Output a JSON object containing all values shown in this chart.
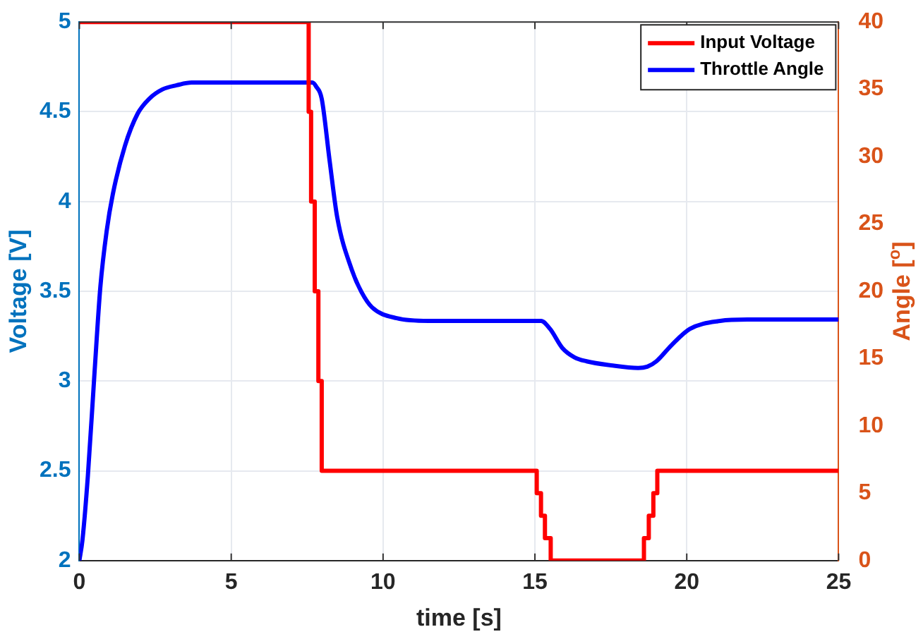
{
  "chart_data": {
    "type": "line",
    "xlabel": "time [s]",
    "ylabel": "Voltage [V]",
    "y2label": "Angle [$^{o}$]",
    "xlim": [
      0,
      25
    ],
    "xticks": [
      0,
      5,
      10,
      15,
      20,
      25
    ],
    "ylim": [
      2,
      5
    ],
    "yticks": [
      2,
      2.5,
      3,
      3.5,
      4,
      4.5,
      5
    ],
    "y2lim": [
      0,
      40
    ],
    "y2ticks": [
      0,
      5,
      10,
      15,
      20,
      25,
      30,
      35,
      40
    ],
    "grid": true,
    "legend": "top right",
    "series": [
      {
        "name": "Input Voltage",
        "type": "step",
        "color": "#ff0000",
        "x": [
          0,
          7.55,
          7.63,
          7.75,
          7.87,
          7.98,
          15.06,
          15.2,
          15.33,
          15.52,
          18.59,
          18.75,
          18.9,
          19.03,
          25
        ],
        "values": [
          5,
          4.5,
          4.0,
          3.5,
          3.0,
          2.5,
          2.375,
          2.25,
          2.125,
          2.0,
          2.125,
          2.25,
          2.375,
          2.5,
          2.5
        ]
      },
      {
        "name": "Throttle Angle",
        "type": "line",
        "axis": "y2",
        "color": "#0000ff",
        "x": [
          0,
          0.1,
          0.28,
          0.5,
          0.69,
          0.9,
          1.1,
          1.5,
          1.92,
          2.3,
          2.74,
          3.2,
          3.7,
          5,
          7.67,
          7.8,
          7.98,
          8.24,
          8.49,
          8.97,
          9.3,
          9.64,
          10.45,
          11.5,
          15.2,
          15.5,
          15.9,
          16.3,
          16.7,
          17.5,
          18.4,
          18.7,
          19.0,
          19.5,
          20.1,
          21.1,
          22,
          25
        ],
        "values": [
          0,
          1.5,
          6.3,
          14,
          20.3,
          24.5,
          27.2,
          30.8,
          33.2,
          34.3,
          35,
          35.3,
          35.5,
          35.5,
          35.5,
          35.2,
          34.3,
          29.7,
          25.5,
          21.6,
          19.9,
          18.8,
          18.0,
          17.8,
          17.8,
          17.2,
          15.8,
          15.1,
          14.8,
          14.5,
          14.3,
          14.4,
          14.8,
          16.0,
          17.2,
          17.8,
          17.9,
          17.9
        ]
      }
    ]
  }
}
